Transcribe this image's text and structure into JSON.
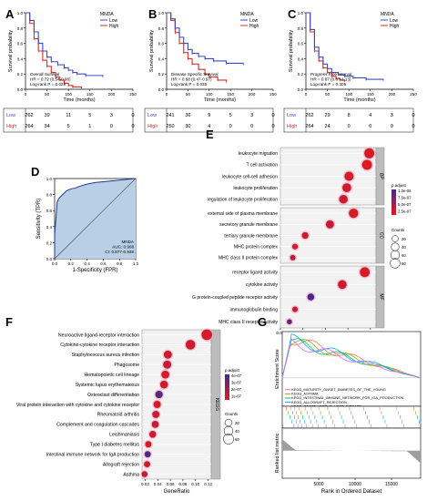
{
  "panel_letters": {
    "A": "A",
    "B": "B",
    "C": "C",
    "D": "D",
    "E": "E",
    "F": "F",
    "G": "G"
  },
  "km_panels": [
    {
      "letter": "A",
      "legend_title": "MNDA",
      "legend_low": "Low",
      "legend_high": "High",
      "ylabel": "Survival probability",
      "xlabel": "Time (months)",
      "xticks": [
        "0",
        "50",
        "100",
        "150",
        "200",
        "250"
      ],
      "yticks": [
        "0.0",
        "0.2",
        "0.4",
        "0.6",
        "0.8",
        "1.0"
      ],
      "stats": [
        "Overall Survival",
        "HR = 0.72 (0.54-0.96)",
        "Log-rank P = 0.028"
      ],
      "risk_labels": [
        "Low",
        "High"
      ],
      "risk_low": [
        "262",
        "39",
        "11",
        "5",
        "3",
        "0"
      ],
      "risk_high": [
        "264",
        "34",
        "5",
        "1",
        "0",
        "0"
      ],
      "low_curve": [
        [
          0,
          1.0
        ],
        [
          10,
          0.9
        ],
        [
          20,
          0.75
        ],
        [
          30,
          0.6
        ],
        [
          40,
          0.5
        ],
        [
          50,
          0.42
        ],
        [
          60,
          0.36
        ],
        [
          75,
          0.32
        ],
        [
          90,
          0.28
        ],
        [
          100,
          0.25
        ],
        [
          110,
          0.22
        ],
        [
          120,
          0.2
        ],
        [
          140,
          0.18
        ],
        [
          180,
          0.17
        ]
      ],
      "high_curve": [
        [
          0,
          1.0
        ],
        [
          10,
          0.86
        ],
        [
          20,
          0.66
        ],
        [
          30,
          0.5
        ],
        [
          40,
          0.38
        ],
        [
          50,
          0.3
        ],
        [
          60,
          0.22
        ],
        [
          70,
          0.16
        ],
        [
          80,
          0.12
        ],
        [
          90,
          0.08
        ],
        [
          100,
          0.05
        ],
        [
          110,
          0.03
        ],
        [
          130,
          0.01
        ]
      ]
    },
    {
      "letter": "B",
      "legend_title": "MNDA",
      "legend_low": "Low",
      "legend_high": "High",
      "ylabel": "Survival probability",
      "xlabel": "Time (months)",
      "xticks": [
        "0",
        "50",
        "100",
        "150",
        "200",
        "250"
      ],
      "yticks": [
        "0.0",
        "0.2",
        "0.4",
        "0.6",
        "0.8",
        "1.0"
      ],
      "stats": [
        "Disease Specific Survival",
        "HR = 0.68 (0.47-0.97)",
        "Log-rank P = 0.035"
      ],
      "risk_labels": [
        "Low",
        "High"
      ],
      "risk_low": [
        "241",
        "36",
        "9",
        "5",
        "3",
        "0"
      ],
      "risk_high": [
        "250",
        "30",
        "4",
        "0",
        "0",
        "0"
      ],
      "low_curve": [
        [
          0,
          1.0
        ],
        [
          10,
          0.92
        ],
        [
          20,
          0.8
        ],
        [
          30,
          0.68
        ],
        [
          40,
          0.6
        ],
        [
          50,
          0.52
        ],
        [
          60,
          0.47
        ],
        [
          75,
          0.43
        ],
        [
          90,
          0.4
        ],
        [
          110,
          0.37
        ],
        [
          140,
          0.34
        ],
        [
          180,
          0.33
        ]
      ],
      "high_curve": [
        [
          0,
          1.0
        ],
        [
          10,
          0.9
        ],
        [
          20,
          0.74
        ],
        [
          30,
          0.6
        ],
        [
          40,
          0.48
        ],
        [
          50,
          0.4
        ],
        [
          60,
          0.33
        ],
        [
          75,
          0.26
        ],
        [
          90,
          0.2
        ],
        [
          100,
          0.16
        ],
        [
          120,
          0.12
        ],
        [
          140,
          0.1
        ]
      ]
    },
    {
      "letter": "C",
      "legend_title": "MNDA",
      "legend_low": "Low",
      "legend_high": "High",
      "ylabel": "Survival probability",
      "xlabel": "Time (months)",
      "xticks": [
        "0",
        "50",
        "100",
        "150",
        "200",
        "250"
      ],
      "yticks": [
        "0.0",
        "0.2",
        "0.4",
        "0.6",
        "0.8",
        "1.0"
      ],
      "stats": [
        "Progress Free Interval",
        "HR = 0.87 (0.67-1.13)",
        "Log-rank P = 0.305"
      ],
      "risk_labels": [
        "Low",
        "High"
      ],
      "risk_low": [
        "262",
        "29",
        "8",
        "4",
        "3",
        "0"
      ],
      "risk_high": [
        "264",
        "24",
        "0",
        "0",
        "0",
        "0"
      ],
      "low_curve": [
        [
          0,
          1.0
        ],
        [
          10,
          0.78
        ],
        [
          20,
          0.55
        ],
        [
          30,
          0.42
        ],
        [
          40,
          0.33
        ],
        [
          50,
          0.27
        ],
        [
          60,
          0.22
        ],
        [
          75,
          0.19
        ],
        [
          90,
          0.17
        ],
        [
          110,
          0.15
        ],
        [
          140,
          0.13
        ],
        [
          180,
          0.12
        ]
      ],
      "high_curve": [
        [
          0,
          1.0
        ],
        [
          10,
          0.75
        ],
        [
          20,
          0.5
        ],
        [
          30,
          0.37
        ],
        [
          40,
          0.28
        ],
        [
          50,
          0.22
        ],
        [
          60,
          0.17
        ],
        [
          70,
          0.14
        ],
        [
          80,
          0.12
        ],
        [
          90,
          0.11
        ]
      ]
    }
  ],
  "roc": {
    "letter": "D",
    "ylabel": "Sensitivity (TPR)",
    "xlabel": "1-Specificity (FPR)",
    "xticks": [
      "0.0",
      "0.2",
      "0.4",
      "0.6",
      "0.8",
      "1.0"
    ],
    "yticks": [
      "0.0",
      "0.2",
      "0.4",
      "0.6",
      "0.8",
      "1.0"
    ],
    "legend": [
      "MNDA",
      "AUC: 0.908",
      "CI: 0.877-0.939"
    ],
    "curve": [
      [
        0,
        0
      ],
      [
        0.0,
        0.3
      ],
      [
        0.02,
        0.55
      ],
      [
        0.03,
        0.7
      ],
      [
        0.05,
        0.75
      ],
      [
        0.08,
        0.78
      ],
      [
        0.12,
        0.82
      ],
      [
        0.15,
        0.85
      ],
      [
        0.2,
        0.87
      ],
      [
        0.25,
        0.88
      ],
      [
        0.3,
        0.9
      ],
      [
        0.4,
        0.93
      ],
      [
        0.5,
        0.95
      ],
      [
        0.6,
        0.96
      ],
      [
        0.7,
        0.97
      ],
      [
        0.8,
        0.98
      ],
      [
        0.9,
        0.99
      ],
      [
        1.0,
        1.0
      ]
    ]
  },
  "go_dotplot": {
    "letter": "E",
    "xlabel": "GeneRatio",
    "xticks": [
      "0.00",
      "0.02",
      "0.04",
      "0.06",
      "0.08"
    ],
    "legend_padj_title": "p.adjust",
    "legend_padj_ticks": [
      "1.0e-06",
      "7.5e-07",
      "5.0e-07",
      "2.5e-07"
    ],
    "legend_count_title": "Counts",
    "legend_count_ticks": [
      "20",
      "40",
      "60",
      "80"
    ],
    "groups": [
      {
        "name": "BP",
        "terms": [
          {
            "label": "leukocyte migration",
            "ratio": 0.079,
            "count": 85,
            "padj": 0.1
          },
          {
            "label": "T cell activation",
            "ratio": 0.077,
            "count": 82,
            "padj": 0.05
          },
          {
            "label": "leukocyte cell-cell adhesion",
            "ratio": 0.061,
            "count": 66,
            "padj": 0.1
          },
          {
            "label": "leukocyte proliferation",
            "ratio": 0.059,
            "count": 60,
            "padj": 0.12
          },
          {
            "label": "regulation of leukocyte proliferation",
            "ratio": 0.056,
            "count": 56,
            "padj": 0.15
          }
        ]
      },
      {
        "name": "CC",
        "terms": [
          {
            "label": "external side of plasma membrane",
            "ratio": 0.065,
            "count": 70,
            "padj": 0.1
          },
          {
            "label": "secretory granule membrane",
            "ratio": 0.044,
            "count": 46,
            "padj": 0.2
          },
          {
            "label": "tertiary granule membrane",
            "ratio": 0.022,
            "count": 24,
            "padj": 0.15
          },
          {
            "label": "MHC protein complex",
            "ratio": 0.013,
            "count": 14,
            "padj": 0.1
          },
          {
            "label": "MHC class II protein complex",
            "ratio": 0.011,
            "count": 12,
            "padj": 0.3
          }
        ]
      },
      {
        "name": "MF",
        "terms": [
          {
            "label": "receptor ligand activity",
            "ratio": 0.075,
            "count": 80,
            "padj": 0.1
          },
          {
            "label": "cytokine activity",
            "ratio": 0.055,
            "count": 58,
            "padj": 0.15
          },
          {
            "label": "G protein-coupled peptide receptor activity",
            "ratio": 0.027,
            "count": 28,
            "padj": 0.95
          },
          {
            "label": "immunoglobulin binding",
            "ratio": 0.013,
            "count": 13,
            "padj": 0.15
          },
          {
            "label": "MHC class II receptor activity",
            "ratio": 0.008,
            "count": 9,
            "padj": 0.8
          }
        ]
      }
    ]
  },
  "kegg_dotplot": {
    "letter": "F",
    "xlabel": "GeneRatio",
    "group": "KEGG",
    "xticks": [
      "0.02",
      "0.04",
      "0.06",
      "0.08",
      "0.10",
      "0.12"
    ],
    "legend_padj_title": "p.adjust",
    "legend_padj_ticks": [
      "4e-07",
      "3e-07",
      "2e-07",
      "1e-07"
    ],
    "legend_count_title": "Counts",
    "legend_count_ticks": [
      "20",
      "40",
      "60"
    ],
    "terms": [
      {
        "label": "Neuroactive ligand-receptor interaction",
        "ratio": 0.118,
        "count": 65,
        "padj": 0.1
      },
      {
        "label": "Cytokine-cytokine receptor interaction",
        "ratio": 0.092,
        "count": 50,
        "padj": 0.15
      },
      {
        "label": "Staphylococcus aureus infection",
        "ratio": 0.056,
        "count": 30,
        "padj": 0.15
      },
      {
        "label": "Phagosome",
        "ratio": 0.055,
        "count": 30,
        "padj": 0.2
      },
      {
        "label": "Hematopoietic cell lineage",
        "ratio": 0.052,
        "count": 28,
        "padj": 0.1
      },
      {
        "label": "Systemic lupus erythematosus",
        "ratio": 0.05,
        "count": 27,
        "padj": 0.15
      },
      {
        "label": "Osteoclast differentiation",
        "ratio": 0.042,
        "count": 23,
        "padj": 0.85
      },
      {
        "label": "Viral protein interaction with cytokine and cytokine receptor",
        "ratio": 0.039,
        "count": 21,
        "padj": 0.1
      },
      {
        "label": "Rheumatoid arthritis",
        "ratio": 0.037,
        "count": 20,
        "padj": 0.15
      },
      {
        "label": "Complement and coagulation cascades",
        "ratio": 0.036,
        "count": 19,
        "padj": 0.2
      },
      {
        "label": "Leishmaniasis",
        "ratio": 0.032,
        "count": 17,
        "padj": 0.15
      },
      {
        "label": "Type I diabetes mellitus",
        "ratio": 0.025,
        "count": 13,
        "padj": 0.1
      },
      {
        "label": "Intestinal immune network for IgA production",
        "ratio": 0.024,
        "count": 12,
        "padj": 0.9
      },
      {
        "label": "Allograft rejection",
        "ratio": 0.023,
        "count": 12,
        "padj": 0.15
      },
      {
        "label": "Asthma",
        "ratio": 0.019,
        "count": 10,
        "padj": 0.2
      }
    ]
  },
  "gsea": {
    "letter": "G",
    "ylabel_top": "Enrichment Score",
    "ylabel_bottom": "Ranked list metric",
    "xlabel": "Rank in Ordered Dataset",
    "xticks": [
      "5000",
      "10000",
      "15000"
    ],
    "legend": [
      {
        "label": "KEGG_MATURITY_ONSET_DIABETES_OF_THE_YOUNG",
        "color": "#f8766d"
      },
      {
        "label": "KEGG_ASTHMA",
        "color": "#a3a500"
      },
      {
        "label": "KEGG_INTESTINAL_IMMUNE_NETWORK_FOR_IGA_PRODUCTION",
        "color": "#00bf7d"
      },
      {
        "label": "KEGG_ALLOGRAFT_REJECTION",
        "color": "#00b0f6"
      },
      {
        "label": "KEGG_GRAFT_VERSUS_HOST_DISEASE",
        "color": "#e76bf3"
      }
    ]
  },
  "colors": {
    "low": "#3b4cc0",
    "high": "#d73027",
    "fill": "#b9cfe6",
    "dot_high": "#e41a1c",
    "dot_low": "#3f2a8c"
  }
}
